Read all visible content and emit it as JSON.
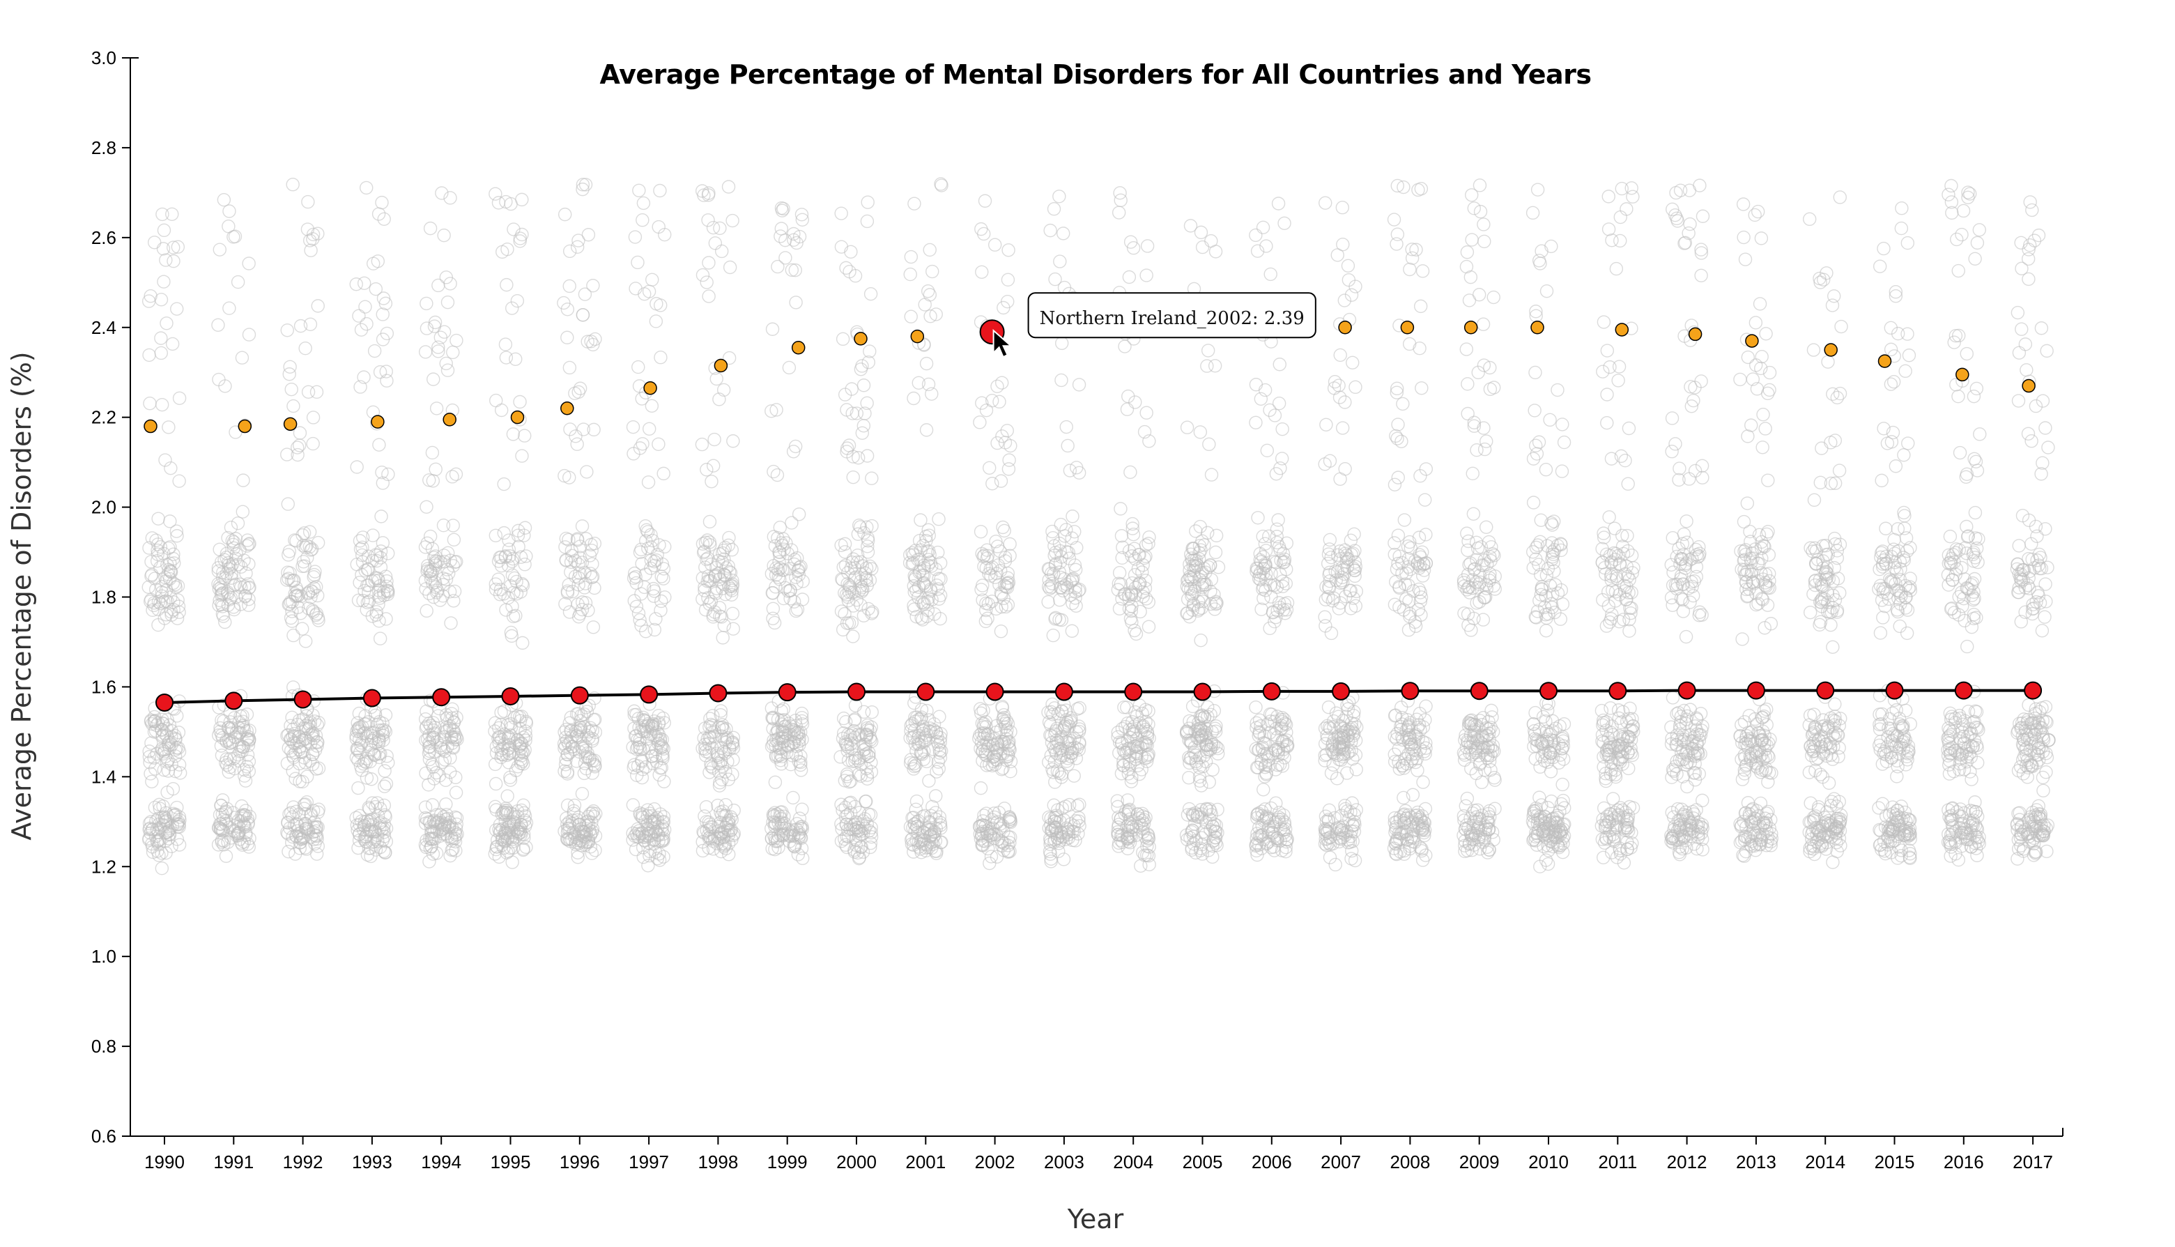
{
  "chart_data": {
    "type": "scatter",
    "title": "Average Percentage of Mental Disorders for All Countries and Years",
    "xlabel": "Year",
    "ylabel": "Average Percentage of Disorders (%)",
    "ylim": [
      0.6,
      3.0
    ],
    "y_ticks": [
      "0.6",
      "0.8",
      "1.0",
      "1.2",
      "1.4",
      "1.6",
      "1.8",
      "2.0",
      "2.2",
      "2.4",
      "2.6",
      "2.8",
      "3.0"
    ],
    "x": [
      "1990",
      "1991",
      "1992",
      "1993",
      "1994",
      "1995",
      "1996",
      "1997",
      "1998",
      "1999",
      "2000",
      "2001",
      "2002",
      "2003",
      "2004",
      "2005",
      "2006",
      "2007",
      "2008",
      "2009",
      "2010",
      "2011",
      "2012",
      "2013",
      "2014",
      "2015",
      "2016",
      "2017"
    ],
    "grid": false,
    "series": [
      {
        "role": "yearly-average",
        "marker": "line+circle",
        "values": [
          1.565,
          1.569,
          1.572,
          1.575,
          1.577,
          1.579,
          1.581,
          1.583,
          1.586,
          1.588,
          1.589,
          1.589,
          1.589,
          1.589,
          1.589,
          1.589,
          1.59,
          1.59,
          1.591,
          1.591,
          1.591,
          1.591,
          1.592,
          1.592,
          1.592,
          1.592,
          1.592,
          1.592
        ]
      },
      {
        "role": "yearly-maximum",
        "marker": "circle",
        "values": [
          2.18,
          2.18,
          2.185,
          2.19,
          2.195,
          2.2,
          2.22,
          2.265,
          2.315,
          2.355,
          2.375,
          2.38,
          2.39,
          null,
          null,
          null,
          null,
          2.4,
          2.4,
          2.4,
          2.4,
          2.395,
          2.385,
          2.37,
          2.35,
          2.325,
          2.295,
          2.27
        ]
      },
      {
        "role": "country-values",
        "marker": "hollow-circle",
        "note_range": [
          1.09,
          2.72
        ]
      }
    ],
    "highlight": {
      "year": "2002",
      "value": 2.39
    },
    "tooltip": "Northern Ireland_2002: 2.39"
  },
  "colors": {
    "average_dot": "#e8141c",
    "maximum_dot": "#f5a31a",
    "country_dot": "#bdbdbd",
    "line": "#000000"
  },
  "icons": {
    "cursor": "mouse-pointer-icon"
  }
}
